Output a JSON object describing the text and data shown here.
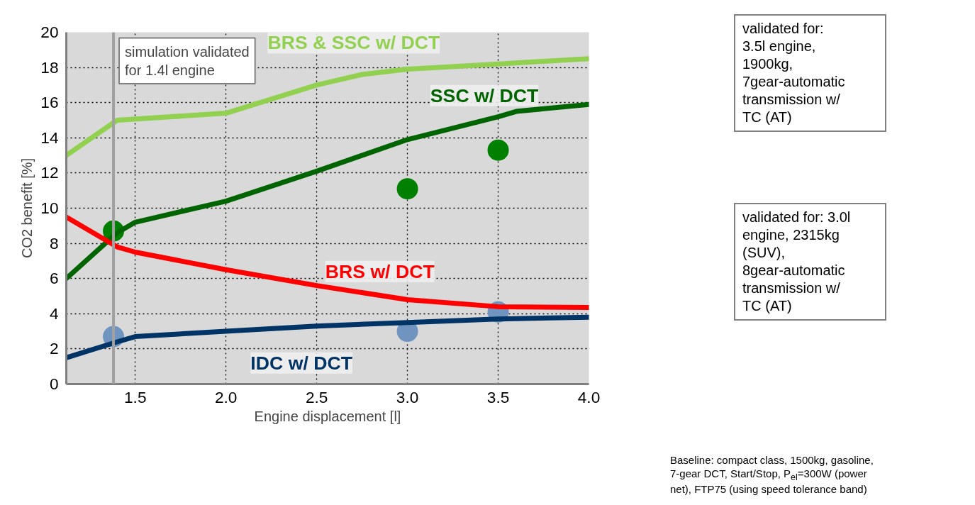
{
  "chart_data": {
    "type": "line",
    "xlabel": "Engine displacement [l]",
    "ylabel": "CO2 benefit [%]",
    "xlim": [
      1.12,
      4.0
    ],
    "ylim": [
      0,
      20
    ],
    "xticks": [
      {
        "value": 1.5,
        "label": "1.5"
      },
      {
        "value": 2.0,
        "label": "2.0"
      },
      {
        "value": 2.5,
        "label": "2.5"
      },
      {
        "value": 3.0,
        "label": "3.0"
      },
      {
        "value": 3.5,
        "label": "3.5"
      },
      {
        "value": 4.0,
        "label": "4.0"
      }
    ],
    "yticks": [
      0,
      2,
      4,
      6,
      8,
      10,
      12,
      14,
      16,
      18,
      20
    ],
    "grid": true,
    "legend": false,
    "line_style": "solid",
    "marker": "none",
    "series": [
      {
        "name": "BRS & SSC w/ DCT",
        "color": "#92d050",
        "x": [
          1.12,
          1.4,
          2.0,
          2.5,
          2.75,
          3.0,
          3.5,
          4.0
        ],
        "values": [
          13,
          15,
          15.4,
          17,
          17.6,
          17.9,
          18.2,
          18.5
        ]
      },
      {
        "name": "SSC w/ DCT",
        "color": "#006400",
        "x": [
          1.12,
          1.4,
          1.5,
          2.0,
          2.5,
          3.0,
          3.5,
          3.6,
          4.0
        ],
        "values": [
          6,
          8.6,
          9.2,
          10.4,
          12.1,
          13.9,
          15.2,
          15.5,
          15.9
        ]
      },
      {
        "name": "BRS w/ DCT",
        "color": "#ff0000",
        "x": [
          1.12,
          1.4,
          1.5,
          2.0,
          2.5,
          3.0,
          3.5,
          4.0
        ],
        "values": [
          9.5,
          7.8,
          7.5,
          6.5,
          5.6,
          4.8,
          4.4,
          4.35
        ]
      },
      {
        "name": "IDC w/ DCT",
        "color": "#003366",
        "x": [
          1.12,
          1.4,
          1.5,
          2.0,
          2.5,
          3.0,
          3.5,
          4.0
        ],
        "values": [
          1.5,
          2.4,
          2.7,
          3.0,
          3.3,
          3.5,
          3.7,
          3.8
        ]
      },
      {
        "type": "scatter",
        "marker": "circle",
        "color": "#008000",
        "x": [
          1.38,
          3.0,
          3.5
        ],
        "values": [
          8.7,
          11.1,
          13.3
        ]
      },
      {
        "type": "scatter",
        "marker": "circle",
        "color": "#7094c0",
        "x": [
          1.38,
          3.0,
          3.5
        ],
        "values": [
          2.7,
          3.0,
          4.1
        ]
      }
    ],
    "ref_lines": [
      {
        "axis": "x",
        "value": 1.38,
        "label": "simulation validated\nfor 1.4l engine",
        "color": "#a0a0a0"
      }
    ],
    "annotations": [
      "validated for:\n3.5l engine,\n1900kg,\n7gear-automatic\ntransmission w/\nTC (AT)",
      "validated for: 3.0l\nengine, 2315kg\n(SUV),\n8gear-automatic\ntransmission w/\nTC (AT)",
      "Baseline: compact class, 1500kg, gasoline,\n7-gear DCT, Start/Stop, P$_{el}$=300W (power\nnet), FTP75 (using speed tolerance band)"
    ]
  }
}
